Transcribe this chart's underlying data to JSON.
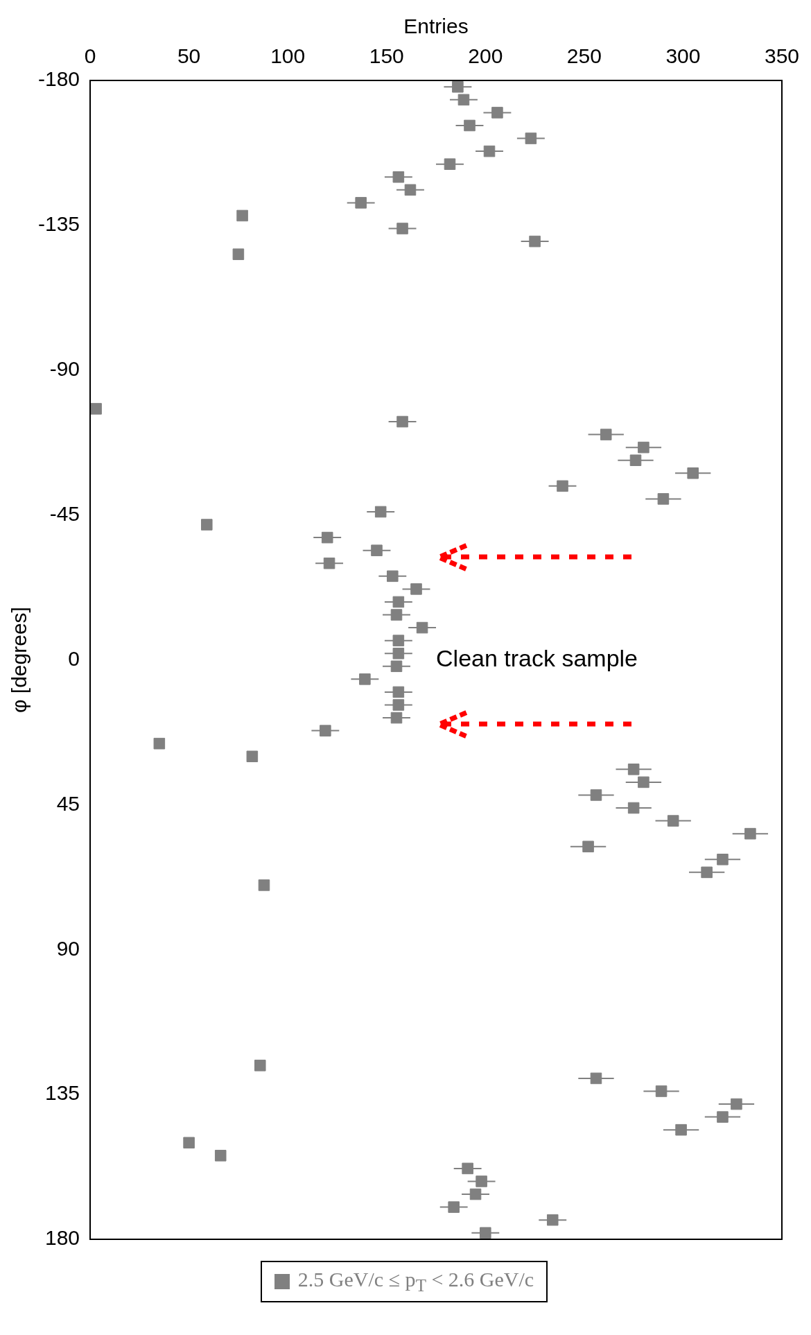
{
  "chart_data": {
    "type": "scatter",
    "xlabel": "Entries",
    "ylabel": "φ [degrees]",
    "xlim": [
      0,
      350
    ],
    "xticks": [
      0,
      50,
      100,
      150,
      200,
      250,
      300,
      350
    ],
    "ylim": [
      180,
      -180
    ],
    "yticks": [
      -180,
      -135,
      -90,
      -45,
      0,
      45,
      90,
      135,
      180
    ],
    "grid": false,
    "legend": "bottom",
    "marker": "square",
    "annotations": [
      "Clean track sample"
    ],
    "series": [
      {
        "name": "2.5 GeV/c ≤ p$_{T}$ < 2.6 GeV/c",
        "color": "#808080",
        "x": [
          186,
          189,
          206,
          192,
          223,
          202,
          182,
          156,
          162,
          137,
          77,
          158,
          225,
          75,
          3,
          158,
          261,
          280,
          276,
          305,
          239,
          290,
          147,
          59,
          120,
          145,
          121,
          153,
          165,
          156,
          155,
          168,
          156,
          156,
          155,
          139,
          156,
          156,
          155,
          119,
          35,
          82,
          275,
          280,
          256,
          275,
          295,
          334,
          252,
          320,
          312,
          88,
          86,
          256,
          289,
          327,
          320,
          299,
          50,
          66,
          191,
          198,
          195,
          184,
          234,
          200
        ],
        "values": [
          -178,
          -174,
          -170,
          -166,
          -162,
          -158,
          -154,
          -150,
          -146,
          -142,
          -138,
          -134,
          -130,
          -126,
          -78,
          -74,
          -70,
          -66,
          -62,
          -58,
          -54,
          -50,
          -46,
          -42,
          -38,
          -34,
          -30,
          -26,
          -22,
          -18,
          -14,
          -10,
          -6,
          -2,
          2,
          6,
          10,
          14,
          18,
          22,
          26,
          30,
          34,
          38,
          42,
          46,
          50,
          54,
          58,
          62,
          66,
          70,
          126,
          130,
          134,
          138,
          142,
          146,
          150,
          154,
          158,
          162,
          166,
          170,
          174,
          178
        ],
        "xerrors": [
          7,
          7,
          7,
          7,
          7,
          7,
          7,
          7,
          7,
          7,
          null,
          7,
          7,
          null,
          null,
          7,
          9,
          9,
          9,
          9,
          7,
          9,
          7,
          null,
          7,
          7,
          7,
          7,
          7,
          7,
          7,
          7,
          7,
          7,
          7,
          7,
          7,
          7,
          7,
          7,
          null,
          null,
          9,
          9,
          9,
          9,
          9,
          9,
          9,
          9,
          9,
          null,
          null,
          9,
          9,
          9,
          9,
          9,
          null,
          null,
          7,
          7,
          7,
          7,
          7,
          7
        ]
      }
    ]
  }
}
